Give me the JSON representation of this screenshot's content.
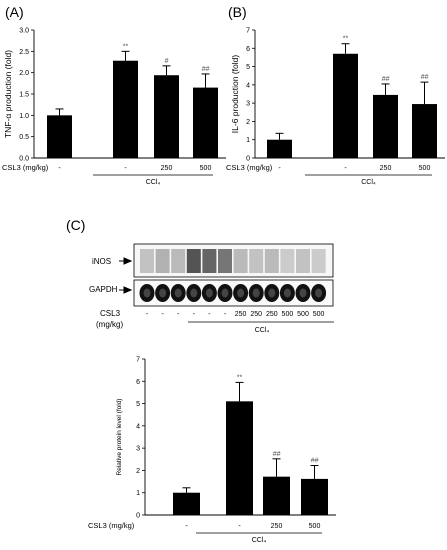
{
  "panel_labels": [
    "(A)",
    "(B)",
    "(C)"
  ],
  "blot": {
    "rows": [
      {
        "label": "iNOS"
      },
      {
        "label": "GAPDH"
      }
    ],
    "treatment_label": "CSL3",
    "treatment_unit": "(mg/kg)",
    "lane_labels": [
      "-",
      "-",
      "-",
      "-",
      "-",
      "-",
      "250",
      "250",
      "250",
      "500",
      "500",
      "500"
    ],
    "group_label": "CCl₄"
  },
  "chart_data": [
    {
      "type": "bar",
      "panel": "(A)",
      "ylabel": "TNF-α production (fold)",
      "ylim": [
        0,
        3.0
      ],
      "yticks": [
        "0.0",
        "0.5",
        "1.0",
        "1.5",
        "2.0",
        "2.5",
        "3.0"
      ],
      "treatment_label": "CSL3 (mg/kg)",
      "categories": [
        "-",
        "-",
        "250",
        "500"
      ],
      "group_label": "CCl₄",
      "values": [
        1.0,
        2.28,
        1.94,
        1.65
      ],
      "errors": [
        0.15,
        0.22,
        0.22,
        0.32
      ],
      "annotations": [
        "",
        "**",
        "#",
        "##"
      ]
    },
    {
      "type": "bar",
      "panel": "(B)",
      "ylabel": "IL-6 production (fold)",
      "ylim": [
        0,
        7
      ],
      "yticks": [
        "0",
        "1",
        "2",
        "3",
        "4",
        "5",
        "6",
        "7"
      ],
      "treatment_label": "CSL3 (mg/kg)",
      "categories": [
        "-",
        "-",
        "250",
        "500"
      ],
      "group_label": "CCl₄",
      "values": [
        1.0,
        5.7,
        3.45,
        2.95
      ],
      "errors": [
        0.35,
        0.55,
        0.6,
        1.2
      ],
      "annotations": [
        "",
        "**",
        "##",
        "##"
      ]
    },
    {
      "type": "bar",
      "panel": "(C)",
      "ylabel": "Relative protein level (fold)",
      "ylim": [
        0,
        7
      ],
      "yticks": [
        "0",
        "1",
        "2",
        "3",
        "4",
        "5",
        "6",
        "7"
      ],
      "treatment_label": "CSL3 (mg/kg)",
      "categories": [
        "-",
        "-",
        "250",
        "500"
      ],
      "group_label": "CCl₄",
      "values": [
        1.0,
        5.1,
        1.72,
        1.62
      ],
      "errors": [
        0.22,
        0.85,
        0.8,
        0.6
      ],
      "annotations": [
        "",
        "**",
        "##",
        "##"
      ]
    }
  ]
}
